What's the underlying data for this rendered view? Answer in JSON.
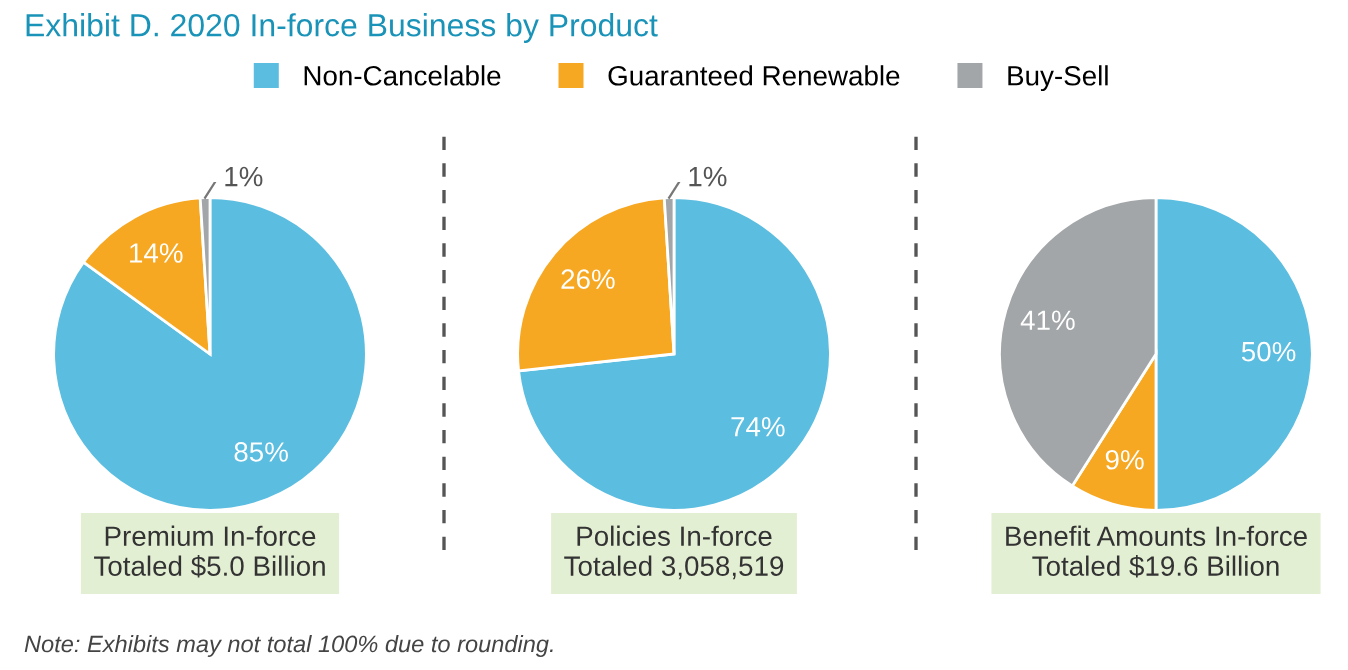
{
  "chart_data": [
    {
      "type": "pie",
      "title": "Exhibit D. 2020 In-force Business by Product",
      "legend": "top",
      "categories": [
        "Non-Cancelable",
        "Guaranteed Renewable",
        "Buy-Sell"
      ],
      "values": [
        85,
        14,
        1
      ],
      "colors": [
        "#5bbde0",
        "#f7a823",
        "#a2a6a8"
      ],
      "value_labels": [
        "85%",
        "14%",
        "1%"
      ],
      "xlabel": "Premium In-force\nTotaled $5.0 Billion",
      "annotations": [
        "Note: Exhibits may not total 100% due to rounding."
      ]
    },
    {
      "type": "pie",
      "values": [
        74,
        26,
        1
      ],
      "colors": [
        "#5bbde0",
        "#f7a823",
        "#a2a6a8"
      ],
      "value_labels": [
        "74%",
        "26%",
        "1%"
      ],
      "xlabel": "Policies In-force\nTotaled 3,058,519"
    },
    {
      "type": "pie",
      "values": [
        50,
        9,
        41
      ],
      "colors": [
        "#5bbde0",
        "#f7a823",
        "#a2a6a8"
      ],
      "value_labels": [
        "50%",
        "9%",
        "41%"
      ],
      "xlabel": "Benefit Amounts In-force\nTotaled $19.6 Billion"
    }
  ]
}
